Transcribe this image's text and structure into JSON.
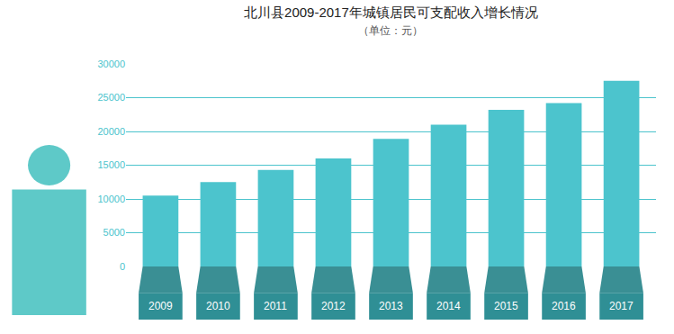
{
  "chart_data": {
    "type": "bar",
    "title": "北川县2009-2017年城镇居民可支配收入增长情况",
    "subtitle": "（单位：元）",
    "categories": [
      "2009",
      "2010",
      "2011",
      "2012",
      "2013",
      "2014",
      "2015",
      "2016",
      "2017"
    ],
    "values": [
      10500,
      12500,
      14300,
      16000,
      18900,
      21000,
      23200,
      24200,
      27500
    ],
    "color": "#4cc4cd",
    "ylim": [
      0,
      30000
    ],
    "yticks": [
      0,
      5000,
      10000,
      15000,
      20000,
      25000,
      30000
    ],
    "grid": true
  }
}
